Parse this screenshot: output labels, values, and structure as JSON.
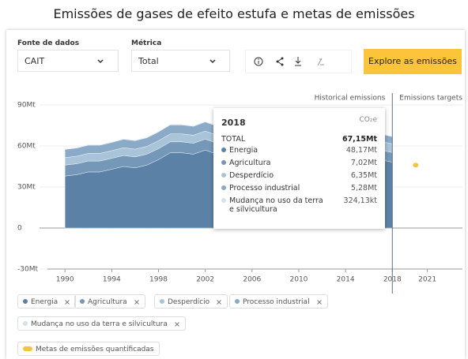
{
  "header": {
    "title": "Emissões de gases de efeito estufa e metas de emissões"
  },
  "controls": {
    "source_label": "Fonte de dados",
    "source_value": "CAIT",
    "metric_label": "Métrica",
    "metric_value": "Total",
    "button": "Explore as emissões"
  },
  "chart_data": {
    "type": "area",
    "stacked": true,
    "x": [
      1990,
      1991,
      1992,
      1993,
      1994,
      1995,
      1996,
      1997,
      1998,
      1999,
      2000,
      2001,
      2002,
      2003,
      2004,
      2005,
      2006,
      2007,
      2008,
      2009,
      2010,
      2011,
      2012,
      2013,
      2014,
      2015,
      2016,
      2017,
      2018
    ],
    "series": [
      {
        "name": "Energia",
        "color": "#5b82a6",
        "values": [
          38,
          39,
          41,
          41,
          43,
          45,
          44,
          46,
          50,
          55,
          55,
          54,
          57,
          54,
          56,
          57,
          58,
          60,
          61,
          60,
          62,
          61,
          60,
          58,
          55,
          53,
          51,
          50,
          48.17
        ]
      },
      {
        "name": "Agricultura",
        "color": "#7597b8",
        "values": [
          8,
          8,
          8,
          8,
          8,
          8,
          8,
          8,
          8,
          8,
          8,
          8,
          8,
          8,
          8,
          8,
          8,
          8,
          8,
          7.8,
          7.7,
          7.6,
          7.5,
          7.4,
          7.3,
          7.2,
          7.1,
          7.05,
          7.02
        ]
      },
      {
        "name": "Desperdício",
        "color": "#a9c3d8",
        "values": [
          5.5,
          5.5,
          5.6,
          5.6,
          5.6,
          5.7,
          5.7,
          5.7,
          5.8,
          5.8,
          5.8,
          5.9,
          5.9,
          5.9,
          6,
          6,
          6,
          6.1,
          6.1,
          6.1,
          6.2,
          6.2,
          6.2,
          6.3,
          6.3,
          6.3,
          6.3,
          6.35,
          6.35
        ]
      },
      {
        "name": "Processo industrial",
        "color": "#8aaac7",
        "values": [
          6,
          6,
          6,
          6,
          6,
          6.2,
          6.2,
          6.3,
          6.5,
          6.6,
          6.6,
          6.5,
          6.7,
          6.5,
          6.6,
          6.7,
          6.8,
          6.8,
          6.9,
          6.5,
          6.6,
          6.5,
          6.3,
          6.1,
          5.9,
          5.7,
          5.5,
          5.4,
          5.28
        ]
      },
      {
        "name": "Mudança no uso da terra e silvicultura",
        "color": "#d3e2ec",
        "values": [
          0.5,
          0.5,
          0.5,
          0.5,
          0.5,
          0.5,
          0.5,
          0.5,
          0.5,
          0.5,
          0.5,
          0.5,
          0.5,
          0.5,
          0.5,
          0.5,
          0.5,
          0.5,
          0.5,
          0.5,
          0.5,
          0.5,
          0.5,
          0.5,
          0.5,
          0.5,
          0.5,
          0.5,
          0.32413
        ]
      }
    ],
    "targets": {
      "type": "scatter",
      "name": "Metas de emissões quantificadas",
      "color": "#f5c342",
      "x": [
        2020
      ],
      "values": [
        46
      ]
    },
    "xlim": [
      1988.5,
      2024
    ],
    "ylim": [
      -30,
      90
    ],
    "yticks": [
      {
        "value": -30,
        "label": "-30Mt"
      },
      0,
      {
        "value": 30,
        "label": "30Mt"
      },
      {
        "value": 60,
        "label": "60Mt"
      },
      {
        "value": 90,
        "label": "90Mt"
      }
    ],
    "xticks": [
      1990,
      1994,
      1998,
      2002,
      2006,
      2010,
      2014,
      2018,
      2021
    ],
    "grid": true,
    "region_labels": [
      "Historical emissions",
      "Emissions targets"
    ],
    "tooltip": {
      "unit": "CO₂e",
      "total_label": "TOTAL",
      "total": "67,15Mt",
      "values": [
        "48,17Mt",
        "7,02Mt",
        "6,35Mt",
        "5,28Mt",
        "324,13kt"
      ]
    }
  }
}
